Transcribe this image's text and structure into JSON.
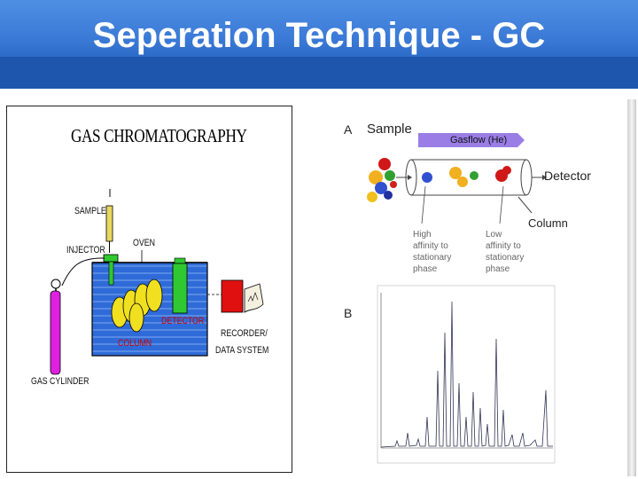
{
  "slide": {
    "title": "Seperation Technique - GC"
  },
  "left_diagram": {
    "title": "GAS CHROMATOGRAPHY",
    "labels": {
      "sample": "SAMPLE",
      "injector": "INJECTOR",
      "oven": "OVEN",
      "detector": "DETECTOR",
      "column": "COLUMN",
      "recorder_line1": "RECORDER/",
      "recorder_line2": "DATA SYSTEM",
      "gas_cylinder": "GAS CYLINDER"
    }
  },
  "right_diagram": {
    "panel_a": {
      "letter": "A",
      "sample": "Sample",
      "gasflow": "Gasflow (He)",
      "detector": "Detector",
      "column": "Column",
      "high_affinity": "High affinity to stationary phase",
      "low_affinity": "Low affinity to stationary phase"
    },
    "panel_b": {
      "letter": "B"
    }
  },
  "colors": {
    "header_blue": "#3a79d6",
    "oven_blue": "#2f6bd8",
    "cylinder_magenta": "#e020e0",
    "detector_green": "#30c830",
    "column_yellow": "#f0e020",
    "recorder_red": "#e01010",
    "gasflow_purple": "#9a7ee6"
  },
  "icons": [
    "gas-cylinder-icon",
    "oven-icon",
    "detector-icon",
    "recorder-icon",
    "printout-icon"
  ]
}
